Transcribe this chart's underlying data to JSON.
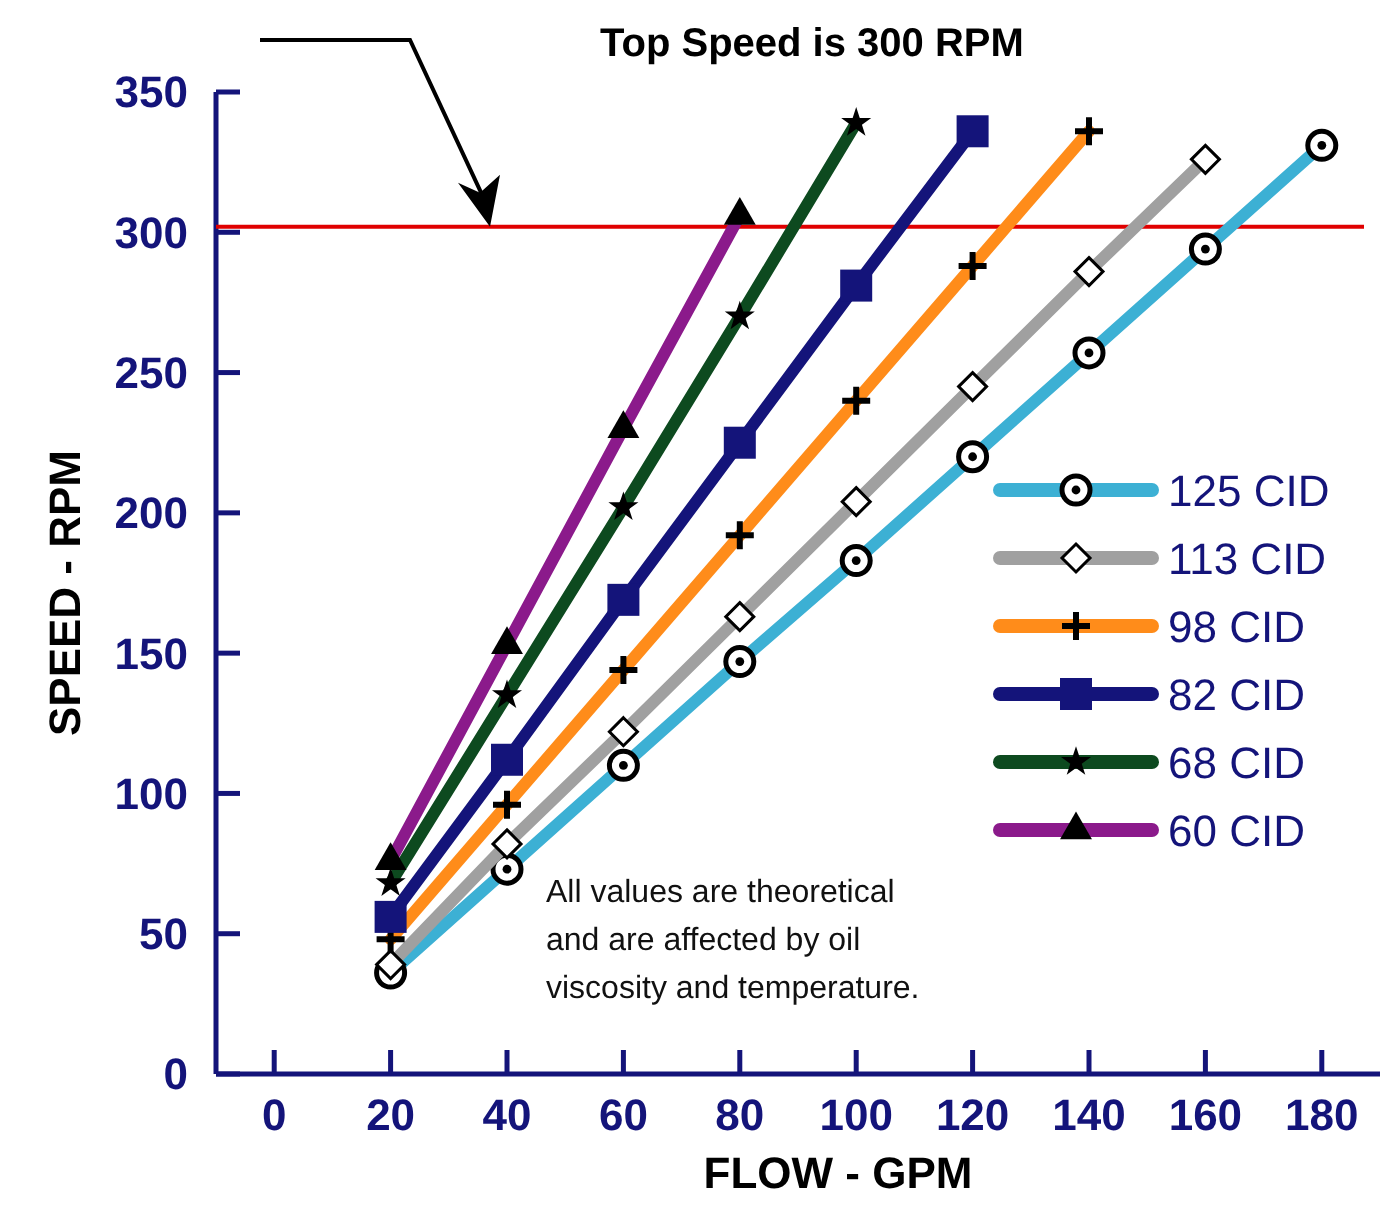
{
  "chart_data": {
    "type": "line",
    "xlabel": "FLOW - GPM",
    "ylabel": "SPEED - RPM",
    "xlim": [
      -10,
      190
    ],
    "xticks": [
      0,
      20,
      40,
      60,
      80,
      100,
      120,
      140,
      160,
      180
    ],
    "ylim": [
      0,
      350
    ],
    "yticks": [
      0,
      50,
      100,
      150,
      200,
      250,
      300,
      350
    ],
    "grid": false,
    "legend": "right",
    "ref_lines": [
      {
        "axis": "y",
        "value": 302,
        "color": "#e00000"
      }
    ],
    "annotations": [
      "Top Speed is 300 RPM",
      "All values are theoretical and are affected by oil viscosity and temperature."
    ],
    "series": [
      {
        "name": "125 CID",
        "color": "#3cb0d4",
        "marker": "circle",
        "x": [
          20,
          40,
          60,
          80,
          100,
          120,
          140,
          160,
          180
        ],
        "values": [
          36,
          73,
          110,
          147,
          183,
          220,
          257,
          294,
          331
        ]
      },
      {
        "name": "113 CID",
        "color": "#a0a0a0",
        "marker": "diamond",
        "x": [
          20,
          40,
          60,
          80,
          100,
          120,
          140,
          160
        ],
        "values": [
          39,
          82,
          122,
          163,
          204,
          245,
          286,
          326
        ]
      },
      {
        "name": "98 CID",
        "color": "#ff8c1a",
        "marker": "cross",
        "x": [
          20,
          40,
          60,
          80,
          100,
          120,
          140
        ],
        "values": [
          48,
          96,
          144,
          192,
          240,
          288,
          336
        ]
      },
      {
        "name": "82 CID",
        "color": "#14147a",
        "marker": "square",
        "x": [
          20,
          40,
          60,
          80,
          100,
          120
        ],
        "values": [
          56,
          112,
          169,
          225,
          281,
          336
        ]
      },
      {
        "name": "68 CID",
        "color": "#0d4a1f",
        "marker": "star",
        "x": [
          20,
          40,
          60,
          80,
          100
        ],
        "values": [
          68,
          135,
          202,
          270,
          339
        ]
      },
      {
        "name": "60 CID",
        "color": "#8b1a8b",
        "marker": "triangle",
        "x": [
          20,
          40,
          60,
          80
        ],
        "values": [
          76,
          153,
          230,
          306
        ]
      }
    ]
  }
}
